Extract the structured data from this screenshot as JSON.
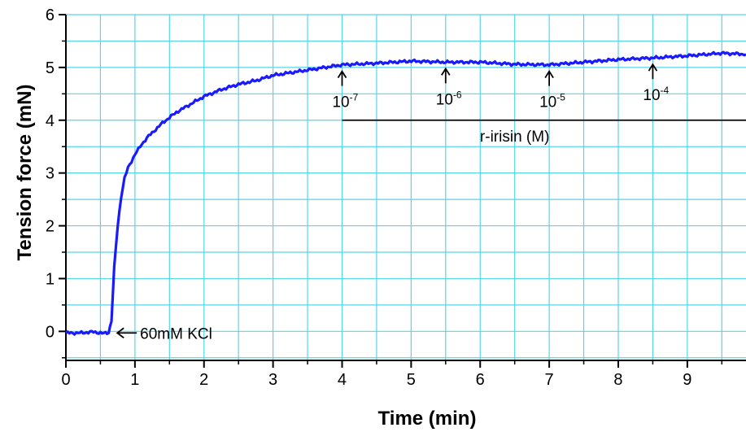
{
  "chart_data": {
    "type": "line",
    "xlabel": "Time (min)",
    "ylabel": "Tension force (mN)",
    "xlim": [
      0,
      9.85
    ],
    "ylim": [
      -0.55,
      6
    ],
    "x_ticks": [
      "0",
      "1",
      "2",
      "3",
      "4",
      "5",
      "6",
      "7",
      "8",
      "9"
    ],
    "y_ticks": [
      "0",
      "1",
      "2",
      "3",
      "4",
      "5",
      "6"
    ],
    "grid": true,
    "colors": {
      "series": "#1a1aff",
      "grid": "#55d6ee",
      "axis": "#000000"
    },
    "series": [
      {
        "x": [
          0,
          0.2,
          0.4,
          0.55,
          0.62,
          0.66,
          0.7,
          0.75,
          0.8,
          0.85,
          0.9,
          1.0,
          1.1,
          1.2,
          1.4,
          1.6,
          1.8,
          2.0,
          2.25,
          2.5,
          2.75,
          3.0,
          3.25,
          3.5,
          3.75,
          4.0,
          4.5,
          5.0,
          5.5,
          6.0,
          6.5,
          7.0,
          7.5,
          8.0,
          8.5,
          9.0,
          9.5,
          9.85
        ],
        "y": [
          -0.03,
          -0.03,
          -0.01,
          -0.04,
          -0.02,
          0.2,
          1.2,
          2.0,
          2.55,
          2.9,
          3.1,
          3.35,
          3.55,
          3.7,
          3.95,
          4.15,
          4.3,
          4.45,
          4.58,
          4.68,
          4.75,
          4.85,
          4.9,
          4.95,
          5.0,
          5.05,
          5.08,
          5.12,
          5.1,
          5.1,
          5.06,
          5.05,
          5.1,
          5.15,
          5.18,
          5.22,
          5.27,
          5.25
        ]
      }
    ],
    "annotations": {
      "kcl_label": "60mM KCl",
      "kcl_at": {
        "x": 0.65,
        "y": -0.03
      },
      "doses": [
        {
          "base": "10",
          "exp": "-7",
          "x": 4.0,
          "y": 5.05
        },
        {
          "base": "10",
          "exp": "-6",
          "x": 5.5,
          "y": 5.1
        },
        {
          "base": "10",
          "exp": "-5",
          "x": 7.0,
          "y": 5.05
        },
        {
          "base": "10",
          "exp": "-4",
          "x": 8.5,
          "y": 5.18
        }
      ],
      "drug_bar_label": "r-irisin (M)",
      "drug_bar": {
        "x_start": 4.0,
        "x_end": 9.85,
        "y": 4.0
      }
    }
  }
}
